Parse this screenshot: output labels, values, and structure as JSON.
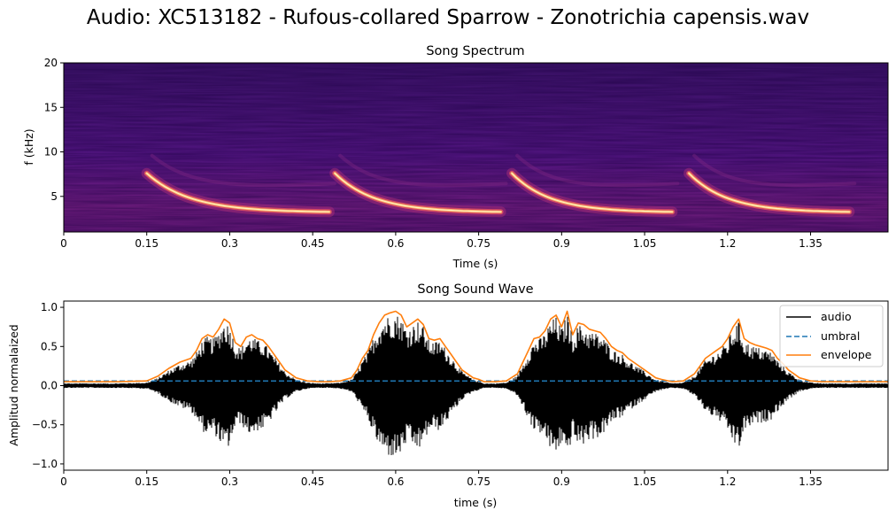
{
  "figure": {
    "title": "Audio: XC513182 - Rufous-collared Sparrow - Zonotrichia capensis.wav"
  },
  "chart_data": [
    {
      "type": "heatmap",
      "title": "Song Spectrum",
      "xlabel": "Time (s)",
      "ylabel": "f (kHz)",
      "xlim": [
        0,
        1.49
      ],
      "ylim": [
        1,
        20
      ],
      "xticks": [
        0,
        0.15,
        0.3,
        0.45,
        0.6,
        0.75,
        0.9,
        1.05,
        1.2,
        1.35
      ],
      "xtick_labels": [
        "0",
        "0.15",
        "0.3",
        "0.45",
        "0.6",
        "0.75",
        "0.9",
        "1.05",
        "1.2",
        "1.35"
      ],
      "yticks": [
        5,
        10,
        15,
        20
      ],
      "ytick_labels": [
        "5",
        "10",
        "15",
        "20"
      ],
      "colormap": "magma",
      "notes_time_s": [
        [
          0.15,
          0.48
        ],
        [
          0.49,
          0.79
        ],
        [
          0.81,
          1.1
        ],
        [
          1.13,
          1.42
        ]
      ],
      "note_contour": {
        "start_khz": 7.6,
        "end_khz": 3.2
      }
    },
    {
      "type": "line",
      "title": "Song Sound Wave",
      "xlabel": "time (s)",
      "ylabel": "Amplitud normalaized",
      "xlim": [
        0,
        1.49
      ],
      "ylim": [
        -1.08,
        1.08
      ],
      "xticks": [
        0,
        0.15,
        0.3,
        0.45,
        0.6,
        0.75,
        0.9,
        1.05,
        1.2,
        1.35
      ],
      "xtick_labels": [
        "0",
        "0.15",
        "0.3",
        "0.45",
        "0.6",
        "0.75",
        "0.9",
        "1.05",
        "1.2",
        "1.35"
      ],
      "yticks": [
        -1.0,
        -0.5,
        0.0,
        0.5,
        1.0
      ],
      "ytick_labels": [
        "−1.0",
        "−0.5",
        "0.0",
        "0.5",
        "1.0"
      ],
      "legend_position": "top-right",
      "series": [
        {
          "name": "audio",
          "color": "#000000",
          "style": "solid"
        },
        {
          "name": "umbral",
          "color": "#1f77b4",
          "style": "dashed",
          "value": 0.06
        },
        {
          "name": "envelope",
          "color": "#ff7f0e",
          "style": "solid",
          "x": [
            0,
            0.05,
            0.1,
            0.15,
            0.17,
            0.19,
            0.21,
            0.23,
            0.24,
            0.25,
            0.26,
            0.27,
            0.28,
            0.29,
            0.3,
            0.31,
            0.32,
            0.33,
            0.34,
            0.35,
            0.36,
            0.37,
            0.38,
            0.39,
            0.4,
            0.41,
            0.42,
            0.43,
            0.44,
            0.46,
            0.48,
            0.5,
            0.52,
            0.53,
            0.54,
            0.55,
            0.56,
            0.57,
            0.58,
            0.59,
            0.6,
            0.61,
            0.62,
            0.63,
            0.64,
            0.65,
            0.66,
            0.67,
            0.68,
            0.69,
            0.7,
            0.71,
            0.72,
            0.73,
            0.74,
            0.75,
            0.76,
            0.78,
            0.8,
            0.82,
            0.83,
            0.84,
            0.85,
            0.86,
            0.87,
            0.88,
            0.89,
            0.9,
            0.91,
            0.92,
            0.93,
            0.94,
            0.95,
            0.96,
            0.97,
            0.98,
            0.99,
            1.0,
            1.01,
            1.02,
            1.03,
            1.04,
            1.05,
            1.06,
            1.07,
            1.08,
            1.1,
            1.12,
            1.14,
            1.15,
            1.16,
            1.17,
            1.18,
            1.19,
            1.2,
            1.21,
            1.22,
            1.23,
            1.24,
            1.25,
            1.26,
            1.27,
            1.28,
            1.29,
            1.3,
            1.31,
            1.32,
            1.33,
            1.35,
            1.37,
            1.4,
            1.45,
            1.49
          ],
          "y": [
            0.05,
            0.05,
            0.05,
            0.06,
            0.12,
            0.22,
            0.3,
            0.35,
            0.45,
            0.6,
            0.65,
            0.62,
            0.72,
            0.85,
            0.8,
            0.55,
            0.5,
            0.62,
            0.65,
            0.6,
            0.58,
            0.5,
            0.4,
            0.3,
            0.2,
            0.15,
            0.1,
            0.08,
            0.06,
            0.05,
            0.05,
            0.06,
            0.1,
            0.2,
            0.35,
            0.45,
            0.65,
            0.8,
            0.9,
            0.93,
            0.95,
            0.9,
            0.75,
            0.8,
            0.85,
            0.78,
            0.6,
            0.58,
            0.6,
            0.5,
            0.4,
            0.3,
            0.2,
            0.15,
            0.1,
            0.08,
            0.05,
            0.05,
            0.06,
            0.15,
            0.3,
            0.45,
            0.6,
            0.62,
            0.7,
            0.85,
            0.9,
            0.75,
            0.95,
            0.65,
            0.8,
            0.78,
            0.72,
            0.7,
            0.68,
            0.6,
            0.5,
            0.45,
            0.42,
            0.35,
            0.3,
            0.25,
            0.2,
            0.15,
            0.1,
            0.08,
            0.05,
            0.06,
            0.15,
            0.25,
            0.35,
            0.4,
            0.45,
            0.5,
            0.6,
            0.75,
            0.85,
            0.6,
            0.55,
            0.52,
            0.5,
            0.48,
            0.45,
            0.35,
            0.28,
            0.2,
            0.15,
            0.1,
            0.06,
            0.05,
            0.05,
            0.05,
            0.05
          ]
        }
      ]
    }
  ]
}
